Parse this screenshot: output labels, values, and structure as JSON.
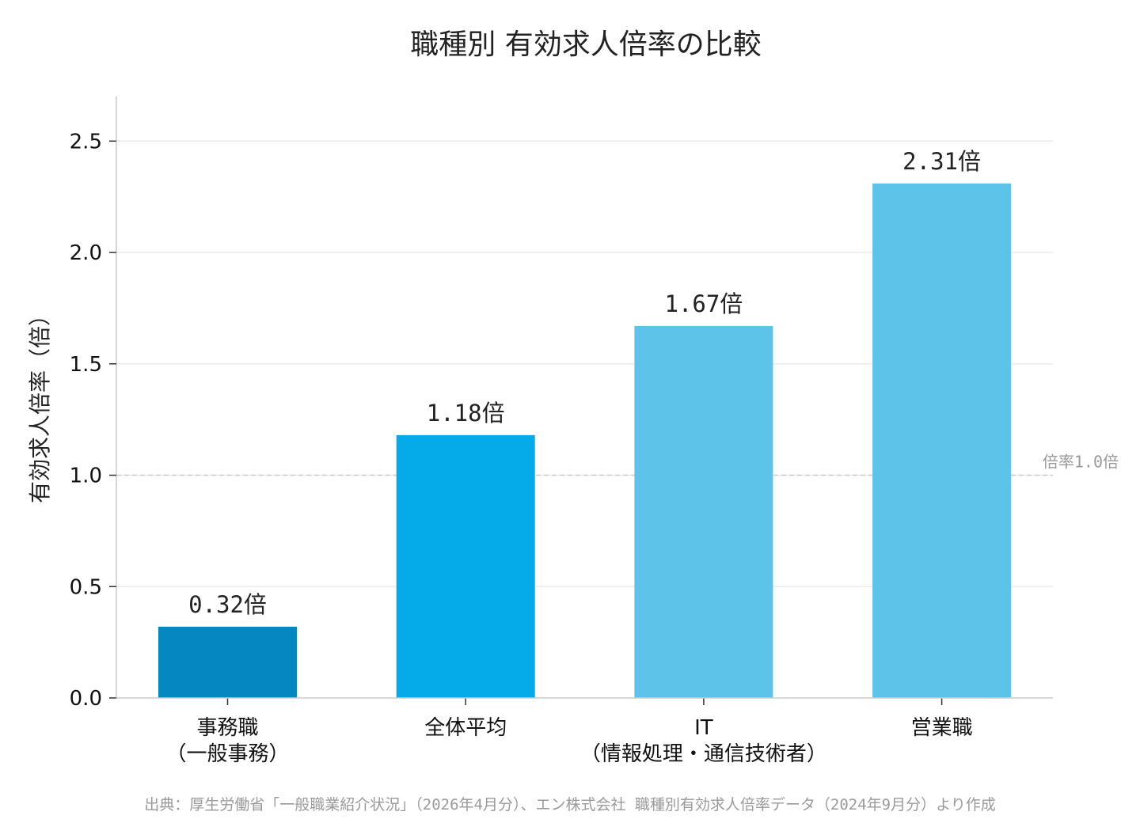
{
  "chart_data": {
    "type": "bar",
    "title": "職種別 有効求人倍率の比較",
    "ylabel": "有効求人倍率（倍）",
    "xlabel": "",
    "ylim": [
      0,
      2.7
    ],
    "yticks": [
      0.0,
      0.5,
      1.0,
      1.5,
      2.0,
      2.5
    ],
    "ytick_labels": [
      "0.0",
      "0.5",
      "1.0",
      "1.5",
      "2.0",
      "2.5"
    ],
    "grid": true,
    "categories": [
      [
        "事務職",
        "（一般事務）"
      ],
      [
        "全体平均"
      ],
      [
        "IT",
        "（情報処理・通信技術者）"
      ],
      [
        "営業職"
      ]
    ],
    "values": [
      0.32,
      1.18,
      1.67,
      2.31
    ],
    "value_labels": [
      "0.32倍",
      "1.18倍",
      "1.67倍",
      "2.31倍"
    ],
    "bar_colors": [
      "#0588c2",
      "#05aae8",
      "#5dc3e8",
      "#5dc3e8"
    ],
    "reference_line": {
      "value": 1.0,
      "label": "倍率1.0倍",
      "color": "#cccccc"
    },
    "source": "出典：厚生労働省「一般職業紹介状況」（2026年4月分）、エン株式会社 職種別有効求人倍率データ（2024年9月分）より作成"
  }
}
